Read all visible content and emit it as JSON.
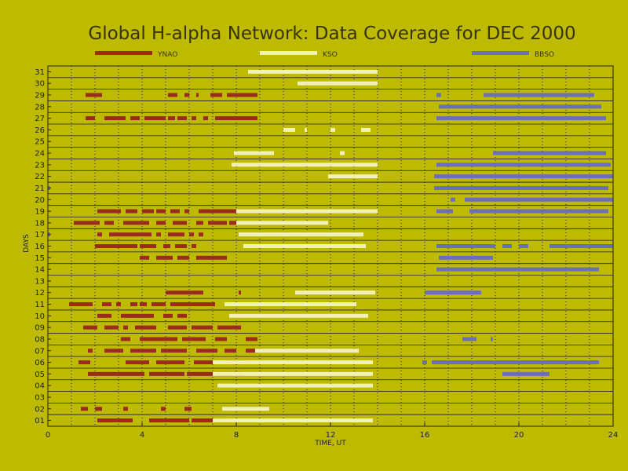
{
  "chart_data": {
    "type": "bar",
    "title": "Global H-alpha Network: Data Coverage for DEC 2000",
    "xlabel": "TIME, UT",
    "ylabel": "DAYS",
    "xlim": [
      0,
      24
    ],
    "ylim": [
      0.5,
      31.5
    ],
    "x_ticks": [
      "0",
      "4",
      "8",
      "12",
      "16",
      "20",
      "24"
    ],
    "y_ticks": [
      "01",
      "02",
      "03",
      "04",
      "05",
      "06",
      "07",
      "08",
      "09",
      "10",
      "11",
      "12",
      "13",
      "14",
      "15",
      "16",
      "17",
      "18",
      "19",
      "20",
      "21",
      "22",
      "23",
      "24",
      "25",
      "26",
      "27",
      "28",
      "29",
      "30",
      "31"
    ],
    "grid": true,
    "legend_placement": "top",
    "series": [
      {
        "name": "YNAO",
        "color": "#9b2b1f",
        "intervals": [
          {
            "day": 1,
            "start": 2.1,
            "end": 3.6
          },
          {
            "day": 1,
            "start": 4.3,
            "end": 6.0
          },
          {
            "day": 1,
            "start": 6.1,
            "end": 7.7
          },
          {
            "day": 2,
            "start": 1.4,
            "end": 1.7
          },
          {
            "day": 2,
            "start": 2.0,
            "end": 2.3
          },
          {
            "day": 2,
            "start": 3.2,
            "end": 3.4
          },
          {
            "day": 2,
            "start": 4.8,
            "end": 5.0
          },
          {
            "day": 2,
            "start": 5.8,
            "end": 6.1
          },
          {
            "day": 4,
            "start": 8.9,
            "end": 9.0
          },
          {
            "day": 5,
            "start": 1.7,
            "end": 4.1
          },
          {
            "day": 5,
            "start": 4.3,
            "end": 5.8
          },
          {
            "day": 5,
            "start": 5.9,
            "end": 7.0
          },
          {
            "day": 5,
            "start": 7.2,
            "end": 8.3
          },
          {
            "day": 6,
            "start": 1.3,
            "end": 1.8
          },
          {
            "day": 6,
            "start": 3.3,
            "end": 4.3
          },
          {
            "day": 6,
            "start": 4.6,
            "end": 5.8
          },
          {
            "day": 6,
            "start": 6.2,
            "end": 7.0
          },
          {
            "day": 6,
            "start": 7.6,
            "end": 8.5
          },
          {
            "day": 7,
            "start": 1.7,
            "end": 1.9
          },
          {
            "day": 7,
            "start": 2.4,
            "end": 3.2
          },
          {
            "day": 7,
            "start": 3.5,
            "end": 4.6
          },
          {
            "day": 7,
            "start": 4.8,
            "end": 5.9
          },
          {
            "day": 7,
            "start": 6.3,
            "end": 7.2
          },
          {
            "day": 7,
            "start": 7.5,
            "end": 8.0
          },
          {
            "day": 7,
            "start": 8.4,
            "end": 8.9
          },
          {
            "day": 8,
            "start": 3.1,
            "end": 3.5
          },
          {
            "day": 8,
            "start": 3.9,
            "end": 5.5
          },
          {
            "day": 8,
            "start": 5.7,
            "end": 6.7
          },
          {
            "day": 8,
            "start": 7.1,
            "end": 7.6
          },
          {
            "day": 8,
            "start": 8.4,
            "end": 8.9
          },
          {
            "day": 9,
            "start": 1.5,
            "end": 2.1
          },
          {
            "day": 9,
            "start": 2.4,
            "end": 3.0
          },
          {
            "day": 9,
            "start": 3.2,
            "end": 3.4
          },
          {
            "day": 9,
            "start": 3.7,
            "end": 4.6
          },
          {
            "day": 9,
            "start": 5.1,
            "end": 5.9
          },
          {
            "day": 9,
            "start": 6.1,
            "end": 7.0
          },
          {
            "day": 9,
            "start": 7.2,
            "end": 8.2
          },
          {
            "day": 10,
            "start": 2.1,
            "end": 2.7
          },
          {
            "day": 10,
            "start": 3.1,
            "end": 4.5
          },
          {
            "day": 10,
            "start": 4.9,
            "end": 5.3
          },
          {
            "day": 10,
            "start": 5.5,
            "end": 5.9
          },
          {
            "day": 11,
            "start": 0.9,
            "end": 1.9
          },
          {
            "day": 11,
            "start": 2.3,
            "end": 2.7
          },
          {
            "day": 11,
            "start": 2.9,
            "end": 3.1
          },
          {
            "day": 11,
            "start": 3.5,
            "end": 3.8
          },
          {
            "day": 11,
            "start": 3.9,
            "end": 4.2
          },
          {
            "day": 11,
            "start": 4.4,
            "end": 5.0
          },
          {
            "day": 11,
            "start": 5.2,
            "end": 7.1
          },
          {
            "day": 11,
            "start": 8.0,
            "end": 8.1
          },
          {
            "day": 12,
            "start": 5.0,
            "end": 6.6
          },
          {
            "day": 12,
            "start": 8.1,
            "end": 8.2
          },
          {
            "day": 15,
            "start": 3.9,
            "end": 4.3
          },
          {
            "day": 15,
            "start": 4.6,
            "end": 5.3
          },
          {
            "day": 15,
            "start": 5.5,
            "end": 6.0
          },
          {
            "day": 15,
            "start": 6.3,
            "end": 7.6
          },
          {
            "day": 16,
            "start": 2.0,
            "end": 3.8
          },
          {
            "day": 16,
            "start": 3.9,
            "end": 4.6
          },
          {
            "day": 16,
            "start": 4.9,
            "end": 5.2
          },
          {
            "day": 16,
            "start": 5.4,
            "end": 5.9
          },
          {
            "day": 16,
            "start": 6.1,
            "end": 6.3
          },
          {
            "day": 17,
            "start": 2.1,
            "end": 2.3
          },
          {
            "day": 17,
            "start": 2.6,
            "end": 4.4
          },
          {
            "day": 17,
            "start": 4.6,
            "end": 4.8
          },
          {
            "day": 17,
            "start": 5.1,
            "end": 5.8
          },
          {
            "day": 17,
            "start": 6.0,
            "end": 6.2
          },
          {
            "day": 17,
            "start": 6.4,
            "end": 6.6
          },
          {
            "day": 18,
            "start": 1.1,
            "end": 2.2
          },
          {
            "day": 18,
            "start": 2.4,
            "end": 2.8
          },
          {
            "day": 18,
            "start": 3.2,
            "end": 4.3
          },
          {
            "day": 18,
            "start": 4.6,
            "end": 5.0
          },
          {
            "day": 18,
            "start": 5.3,
            "end": 5.9
          },
          {
            "day": 18,
            "start": 6.3,
            "end": 6.6
          },
          {
            "day": 18,
            "start": 6.8,
            "end": 7.6
          },
          {
            "day": 18,
            "start": 7.7,
            "end": 8.1
          },
          {
            "day": 19,
            "start": 2.1,
            "end": 3.1
          },
          {
            "day": 19,
            "start": 3.3,
            "end": 3.8
          },
          {
            "day": 19,
            "start": 4.0,
            "end": 4.5
          },
          {
            "day": 19,
            "start": 4.6,
            "end": 5.0
          },
          {
            "day": 19,
            "start": 5.2,
            "end": 5.6
          },
          {
            "day": 19,
            "start": 5.8,
            "end": 6.0
          },
          {
            "day": 19,
            "start": 6.4,
            "end": 6.6
          },
          {
            "day": 19,
            "start": 6.6,
            "end": 9.0
          },
          {
            "day": 27,
            "start": 1.6,
            "end": 2.0
          },
          {
            "day": 27,
            "start": 2.4,
            "end": 3.3
          },
          {
            "day": 27,
            "start": 3.5,
            "end": 3.9
          },
          {
            "day": 27,
            "start": 4.1,
            "end": 5.0
          },
          {
            "day": 27,
            "start": 5.1,
            "end": 5.4
          },
          {
            "day": 27,
            "start": 5.5,
            "end": 5.9
          },
          {
            "day": 27,
            "start": 6.1,
            "end": 6.3
          },
          {
            "day": 27,
            "start": 6.6,
            "end": 6.8
          },
          {
            "day": 27,
            "start": 7.1,
            "end": 8.9
          },
          {
            "day": 29,
            "start": 1.6,
            "end": 2.3
          },
          {
            "day": 29,
            "start": 5.1,
            "end": 5.5
          },
          {
            "day": 29,
            "start": 5.8,
            "end": 6.0
          },
          {
            "day": 29,
            "start": 6.3,
            "end": 6.4
          },
          {
            "day": 29,
            "start": 6.9,
            "end": 7.4
          },
          {
            "day": 29,
            "start": 7.6,
            "end": 8.9
          }
        ]
      },
      {
        "name": "KSO",
        "color": "#f2f0b6",
        "intervals": [
          {
            "day": 1,
            "start": 7.0,
            "end": 13.8
          },
          {
            "day": 2,
            "start": 7.4,
            "end": 9.4
          },
          {
            "day": 4,
            "start": 7.2,
            "end": 13.8
          },
          {
            "day": 5,
            "start": 7.0,
            "end": 13.8
          },
          {
            "day": 6,
            "start": 7.0,
            "end": 13.8
          },
          {
            "day": 7,
            "start": 8.8,
            "end": 13.2
          },
          {
            "day": 10,
            "start": 7.7,
            "end": 13.6
          },
          {
            "day": 11,
            "start": 7.5,
            "end": 13.1
          },
          {
            "day": 12,
            "start": 10.5,
            "end": 13.9
          },
          {
            "day": 16,
            "start": 8.3,
            "end": 13.5
          },
          {
            "day": 17,
            "start": 8.1,
            "end": 13.4
          },
          {
            "day": 18,
            "start": 8.0,
            "end": 11.9
          },
          {
            "day": 19,
            "start": 8.0,
            "end": 14.0
          },
          {
            "day": 22,
            "start": 11.9,
            "end": 14.0
          },
          {
            "day": 23,
            "start": 7.8,
            "end": 14.0
          },
          {
            "day": 24,
            "start": 7.9,
            "end": 9.6
          },
          {
            "day": 24,
            "start": 12.4,
            "end": 12.6
          },
          {
            "day": 26,
            "start": 10.0,
            "end": 10.5
          },
          {
            "day": 26,
            "start": 10.9,
            "end": 11.0
          },
          {
            "day": 26,
            "start": 12.0,
            "end": 12.2
          },
          {
            "day": 26,
            "start": 13.3,
            "end": 13.7
          },
          {
            "day": 30,
            "start": 10.6,
            "end": 14.0
          },
          {
            "day": 31,
            "start": 8.5,
            "end": 14.0
          }
        ]
      },
      {
        "name": "BBSO",
        "color": "#6b6eb8",
        "intervals": [
          {
            "day": 5,
            "start": 19.3,
            "end": 21.3
          },
          {
            "day": 6,
            "start": 15.9,
            "end": 16.1
          },
          {
            "day": 6,
            "start": 16.3,
            "end": 23.4
          },
          {
            "day": 8,
            "start": 17.6,
            "end": 18.2
          },
          {
            "day": 8,
            "start": 18.8,
            "end": 18.9
          },
          {
            "day": 12,
            "start": 16.0,
            "end": 18.4
          },
          {
            "day": 14,
            "start": 16.5,
            "end": 23.4
          },
          {
            "day": 15,
            "start": 16.6,
            "end": 18.9
          },
          {
            "day": 16,
            "start": 16.5,
            "end": 19.0
          },
          {
            "day": 16,
            "start": 19.3,
            "end": 19.7
          },
          {
            "day": 16,
            "start": 20.0,
            "end": 20.4
          },
          {
            "day": 16,
            "start": 21.3,
            "end": 24.0
          },
          {
            "day": 17,
            "start": 0.0,
            "end": 0.1
          },
          {
            "day": 19,
            "start": 16.5,
            "end": 17.2
          },
          {
            "day": 19,
            "start": 17.9,
            "end": 23.8
          },
          {
            "day": 20,
            "start": 17.1,
            "end": 17.3
          },
          {
            "day": 20,
            "start": 17.7,
            "end": 24.0
          },
          {
            "day": 21,
            "start": 0.0,
            "end": 0.1
          },
          {
            "day": 21,
            "start": 16.4,
            "end": 23.8
          },
          {
            "day": 22,
            "start": 16.4,
            "end": 24.0
          },
          {
            "day": 23,
            "start": 16.5,
            "end": 23.9
          },
          {
            "day": 24,
            "start": 18.9,
            "end": 23.7
          },
          {
            "day": 27,
            "start": 16.5,
            "end": 23.7
          },
          {
            "day": 28,
            "start": 16.6,
            "end": 23.5
          },
          {
            "day": 29,
            "start": 16.5,
            "end": 16.7
          },
          {
            "day": 29,
            "start": 18.5,
            "end": 23.2
          }
        ]
      }
    ]
  },
  "colors": {
    "background": "#bdba00",
    "axis": "#222222",
    "grid": "#222222"
  }
}
